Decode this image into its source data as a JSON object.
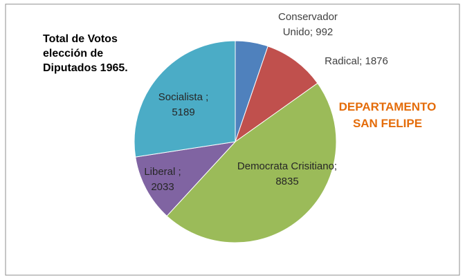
{
  "chart_data": {
    "type": "pie",
    "title": "Total de Votos elección de Diputados 1965.",
    "subtitle": "DEPARTAMENTO SAN FELIPE",
    "categories": [
      "Conservador Unido",
      "Radical",
      "Democrata Crisitiano",
      "Liberal",
      "Socialista"
    ],
    "values": [
      992,
      1876,
      8835,
      2033,
      5189
    ],
    "value_labels": [
      "Conservador Unido; 992",
      "Radical; 1876",
      "Democrata Crisitiano; 8835",
      "Liberal ; 2033",
      "Socialista ; 5189"
    ],
    "colors": [
      "#4f81bd",
      "#c0504d",
      "#9bbb59",
      "#8064a2",
      "#4bacc6"
    ]
  }
}
